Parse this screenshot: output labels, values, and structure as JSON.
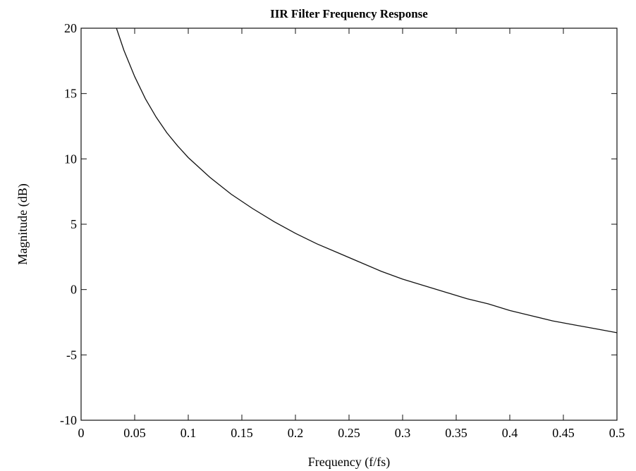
{
  "chart_data": {
    "type": "line",
    "title": "IIR Filter Frequency Response",
    "xlabel": "Frequency (f/fs)",
    "ylabel": "Magnitude (dB)",
    "xlim": [
      0,
      0.5
    ],
    "ylim": [
      -10,
      20
    ],
    "grid": false,
    "x_ticks": [
      0,
      0.05,
      0.1,
      0.15,
      0.2,
      0.25,
      0.3,
      0.35,
      0.4,
      0.45,
      0.5
    ],
    "x_tick_labels": [
      "0",
      "0.05",
      "0.1",
      "0.15",
      "0.2",
      "0.25",
      "0.3",
      "0.35",
      "0.4",
      "0.45",
      "0.5"
    ],
    "y_ticks": [
      -10,
      -5,
      0,
      5,
      10,
      15,
      20
    ],
    "y_tick_labels": [
      "-10",
      "-5",
      "0",
      "5",
      "10",
      "15",
      "20"
    ],
    "series": [
      {
        "x": [
          0.033,
          0.04,
          0.05,
          0.06,
          0.07,
          0.08,
          0.09,
          0.1,
          0.12,
          0.14,
          0.16,
          0.18,
          0.2,
          0.22,
          0.24,
          0.26,
          0.28,
          0.3,
          0.32,
          0.34,
          0.36,
          0.38,
          0.4,
          0.42,
          0.44,
          0.46,
          0.48,
          0.5
        ],
        "y": [
          20.0,
          18.3,
          16.3,
          14.6,
          13.2,
          12.0,
          11.0,
          10.1,
          8.6,
          7.3,
          6.2,
          5.2,
          4.3,
          3.5,
          2.8,
          2.1,
          1.4,
          0.8,
          0.3,
          -0.2,
          -0.7,
          -1.1,
          -1.6,
          -2.0,
          -2.4,
          -2.7,
          -3.0,
          -3.3
        ]
      }
    ]
  }
}
